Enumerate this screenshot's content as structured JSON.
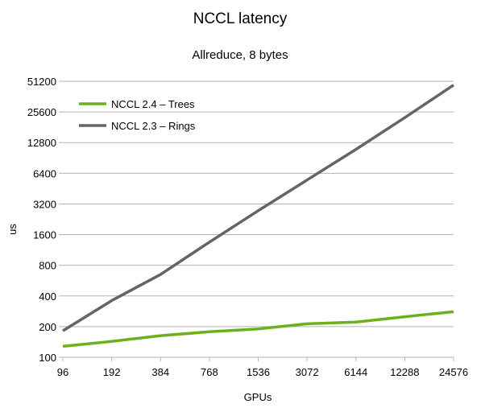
{
  "chart_data": {
    "type": "line",
    "title": "NCCL latency",
    "subtitle": "Allreduce, 8 bytes",
    "xlabel": "GPUs",
    "ylabel": "us",
    "x_categories": [
      "96",
      "192",
      "384",
      "768",
      "1536",
      "3072",
      "6144",
      "12288",
      "24576"
    ],
    "y_scale": "log2",
    "ylim": [
      100,
      51200
    ],
    "y_ticks": [
      "100",
      "200",
      "400",
      "800",
      "1600",
      "3200",
      "6400",
      "12800",
      "25600",
      "51200"
    ],
    "y_tick_values": [
      100,
      200,
      400,
      800,
      1600,
      3200,
      6400,
      12800,
      25600,
      51200
    ],
    "grid": "horizontal",
    "legend_position": "top-left",
    "series": [
      {
        "name": "NCCL 2.4 – Trees",
        "color": "#6cb11c",
        "values": [
          128,
          143,
          163,
          178,
          190,
          213,
          222,
          250,
          280
        ]
      },
      {
        "name": "NCCL 2.3 – Rings",
        "color": "#646464",
        "values": [
          182,
          360,
          650,
          1350,
          2750,
          5500,
          11000,
          22500,
          47000
        ]
      }
    ]
  }
}
